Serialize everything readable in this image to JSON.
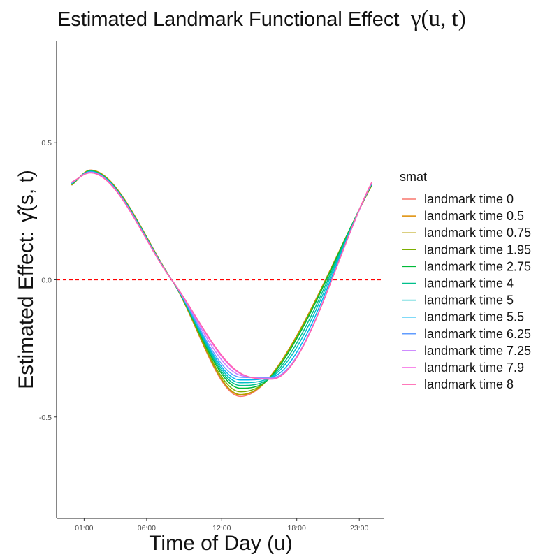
{
  "chart_data": {
    "type": "line",
    "title_prefix": "Estimated Landmark Functional Effect",
    "title_symbol": "γ(u, t)",
    "xlabel": "Time of Day (u)",
    "ylabel_prefix": "Estimated Effect:",
    "ylabel_symbol": "γ̂(s, t)",
    "x_ticks": [
      {
        "value": 1,
        "label": "01:00"
      },
      {
        "value": 6,
        "label": "06:00"
      },
      {
        "value": 12,
        "label": "12:00"
      },
      {
        "value": 18,
        "label": "18:00"
      },
      {
        "value": 23,
        "label": "23:00"
      }
    ],
    "y_ticks": [
      {
        "value": 0.5,
        "label": "0.5"
      },
      {
        "value": 0.0,
        "label": "0.0"
      },
      {
        "value": -0.5,
        "label": "-0.5"
      }
    ],
    "xlim": [
      -1.2,
      25.0
    ],
    "ylim": [
      -0.87,
      0.87
    ],
    "reference_line": {
      "y": 0,
      "color": "#ff0000",
      "style": "dashed"
    },
    "legend_title": "smat",
    "x": [
      0,
      1.5,
      8,
      13.5,
      16,
      24
    ],
    "series": [
      {
        "name": "landmark time 0",
        "color": "#F8766D",
        "values": [
          0.345,
          0.4,
          0.0,
          -0.425,
          -0.345,
          0.345
        ]
      },
      {
        "name": "landmark time 0.5",
        "color": "#DE8C00",
        "values": [
          0.345,
          0.4,
          0.0,
          -0.42,
          -0.345,
          0.345
        ]
      },
      {
        "name": "landmark time 0.75",
        "color": "#B79F00",
        "values": [
          0.346,
          0.399,
          0.0,
          -0.418,
          -0.346,
          0.346
        ]
      },
      {
        "name": "landmark time 1.95",
        "color": "#7CAE00",
        "values": [
          0.347,
          0.398,
          0.0,
          -0.408,
          -0.348,
          0.347
        ]
      },
      {
        "name": "landmark time 2.75",
        "color": "#00BA38",
        "values": [
          0.348,
          0.397,
          0.0,
          -0.395,
          -0.35,
          0.348
        ]
      },
      {
        "name": "landmark time 4",
        "color": "#00C08B",
        "values": [
          0.35,
          0.396,
          0.0,
          -0.385,
          -0.352,
          0.35
        ]
      },
      {
        "name": "landmark time 5",
        "color": "#00BFC4",
        "values": [
          0.351,
          0.395,
          0.0,
          -0.375,
          -0.353,
          0.351
        ]
      },
      {
        "name": "landmark time 5.5",
        "color": "#00B4F0",
        "values": [
          0.352,
          0.394,
          0.0,
          -0.365,
          -0.355,
          0.352
        ]
      },
      {
        "name": "landmark time 6.25",
        "color": "#619CFF",
        "values": [
          0.353,
          0.393,
          0.0,
          -0.355,
          -0.357,
          0.353
        ]
      },
      {
        "name": "landmark time 7.25",
        "color": "#C77CFF",
        "values": [
          0.354,
          0.392,
          0.0,
          -0.348,
          -0.359,
          0.354
        ]
      },
      {
        "name": "landmark time 7.9",
        "color": "#F564E3",
        "values": [
          0.355,
          0.391,
          0.0,
          -0.342,
          -0.361,
          0.355
        ]
      },
      {
        "name": "landmark time 8",
        "color": "#FF64B0",
        "values": [
          0.356,
          0.39,
          0.0,
          -0.34,
          -0.362,
          0.356
        ]
      }
    ]
  }
}
